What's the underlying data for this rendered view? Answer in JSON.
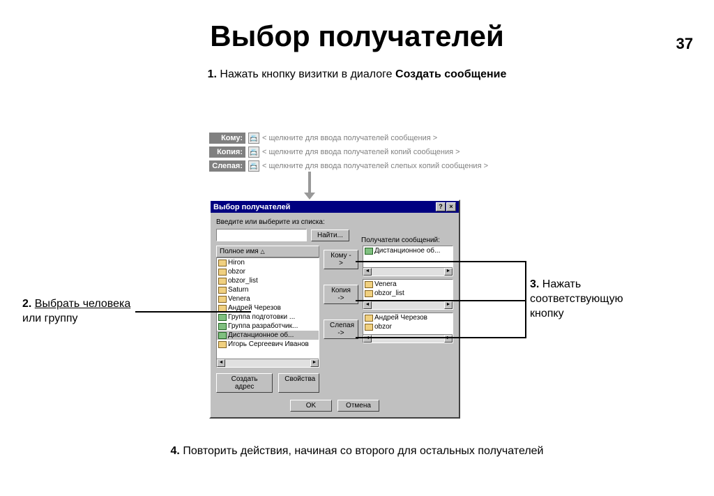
{
  "page_number": "37",
  "title": "Выбор получателей",
  "step1": {
    "num": "1.",
    "text": "Нажать кнопку визитки в диалоге ",
    "bold": "Создать сообщение"
  },
  "recipients_preview": {
    "rows": [
      {
        "label": "Кому:",
        "placeholder": "< щелкните для ввода получателей сообщения >"
      },
      {
        "label": "Копия:",
        "placeholder": "< щелкните для ввода получателей копий сообщения >"
      },
      {
        "label": "Слепая:",
        "placeholder": "< щелкните для ввода получателей слепых копий сообщения >"
      }
    ]
  },
  "dialog": {
    "title": "Выбор получателей",
    "prompt": "Введите или выберите из списка:",
    "find_button": "Найти...",
    "column_header": "Полное имя",
    "recipients_label": "Получатели сообщений:",
    "list": [
      {
        "name": "Hiron",
        "type": "person"
      },
      {
        "name": "obzor",
        "type": "person"
      },
      {
        "name": "obzor_list",
        "type": "person"
      },
      {
        "name": "Saturn",
        "type": "person"
      },
      {
        "name": "Venera",
        "type": "person"
      },
      {
        "name": "Андрей Черезов",
        "type": "person"
      },
      {
        "name": "Группа подготовки ...",
        "type": "group"
      },
      {
        "name": "Группа разработчик...",
        "type": "group"
      },
      {
        "name": "Дистанционное об...",
        "type": "group",
        "selected": true
      },
      {
        "name": "Игорь Сергеевич Иванов",
        "type": "person"
      }
    ],
    "mid_buttons": [
      "Кому ->",
      "Копия ->",
      "Слепая ->"
    ],
    "right_boxes": {
      "komu": [
        {
          "name": "Дистанционное об...",
          "type": "group"
        }
      ],
      "kopia": [
        {
          "name": "Venera",
          "type": "person"
        },
        {
          "name": "obzor_list",
          "type": "person"
        }
      ],
      "slepaya": [
        {
          "name": "Андрей Черезов",
          "type": "person"
        },
        {
          "name": "obzor",
          "type": "person"
        }
      ]
    },
    "create_addr": "Создать адрес",
    "properties": "Свойства",
    "ok": "OK",
    "cancel": "Отмена"
  },
  "ann2": {
    "num": "2.",
    "u": "Выбрать человека",
    "rest": "или группу"
  },
  "ann3": {
    "num": "3.",
    "l1": "Нажать",
    "l2": "соответствующую",
    "l3": "кнопку"
  },
  "step4": {
    "num": "4.",
    "text": "Повторить действия, начиная со второго для остальных получателей"
  },
  "colors": {
    "titlebar": "#000080",
    "dialog_bg": "#c0c0c0",
    "label_bg": "#808080"
  }
}
